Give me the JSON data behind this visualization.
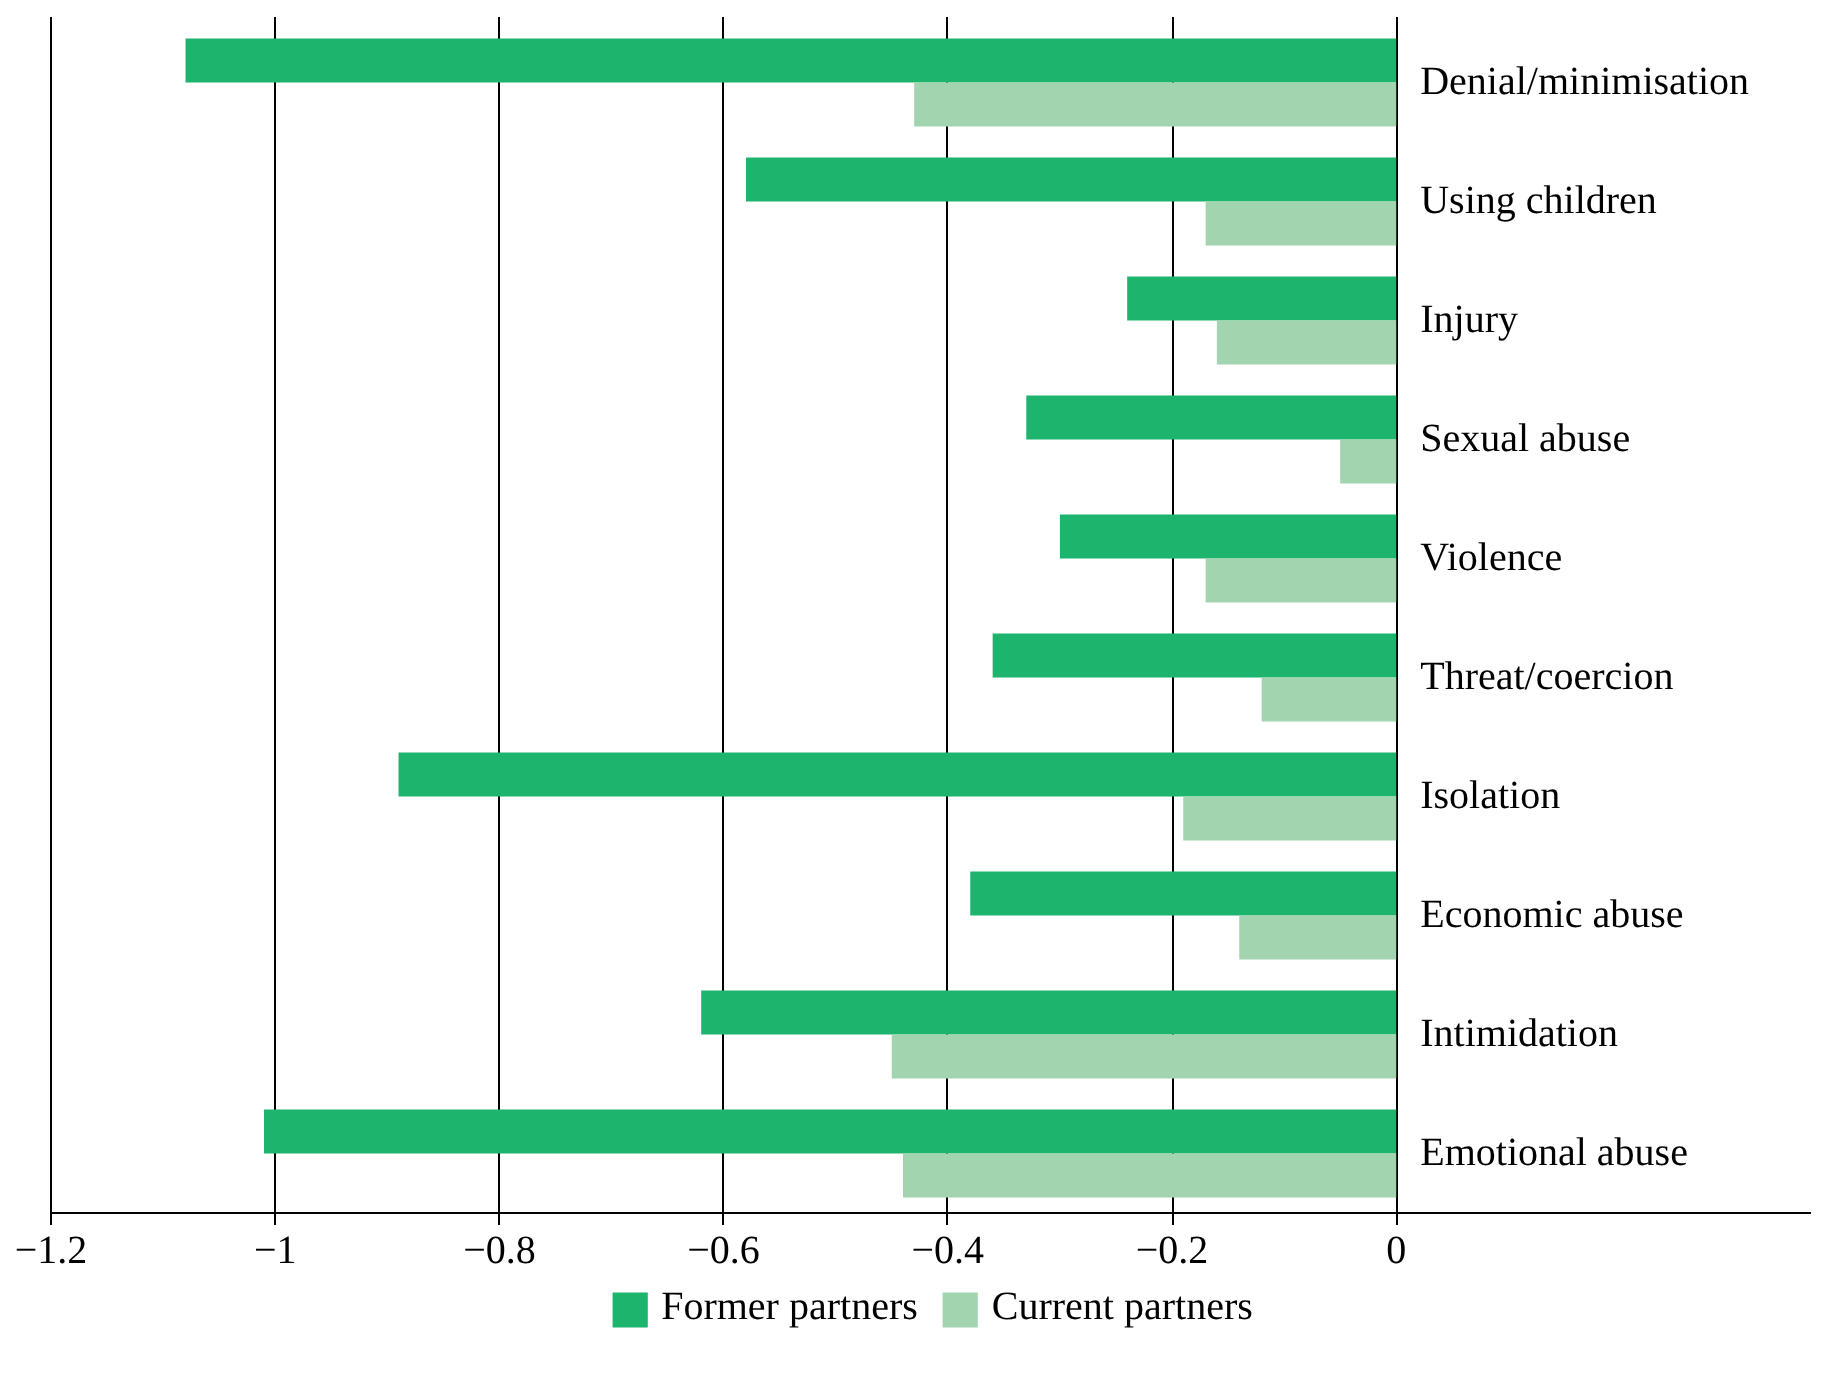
{
  "chart_data": {
    "type": "bar",
    "orientation": "horizontal",
    "categories": [
      "Denial/minimisation",
      "Using children",
      "Injury",
      "Sexual abuse",
      "Violence",
      "Threat/coercion",
      "Isolation",
      "Economic abuse",
      "Intimidation",
      "Emotional abuse"
    ],
    "series": [
      {
        "name": "Former partners",
        "color": "#1db46e",
        "values": [
          -1.08,
          -0.58,
          -0.24,
          -0.33,
          -0.3,
          -0.36,
          -0.89,
          -0.38,
          -0.62,
          -1.01
        ]
      },
      {
        "name": "Current partners",
        "color": "#a3d4b0",
        "values": [
          -0.43,
          -0.17,
          -0.16,
          -0.05,
          -0.17,
          -0.12,
          -0.19,
          -0.14,
          -0.45,
          -0.44
        ]
      }
    ],
    "xlim": [
      -1.2,
      0.37
    ],
    "xticks": [
      {
        "value": -1.2,
        "label": "−1.2"
      },
      {
        "value": -1,
        "label": "−1"
      },
      {
        "value": -0.8,
        "label": "−0.8"
      },
      {
        "value": -0.6,
        "label": "−0.6"
      },
      {
        "value": -0.4,
        "label": "−0.4"
      },
      {
        "value": -0.2,
        "label": "−0.2"
      },
      0
    ],
    "grid": "x",
    "legend": "bottom"
  }
}
